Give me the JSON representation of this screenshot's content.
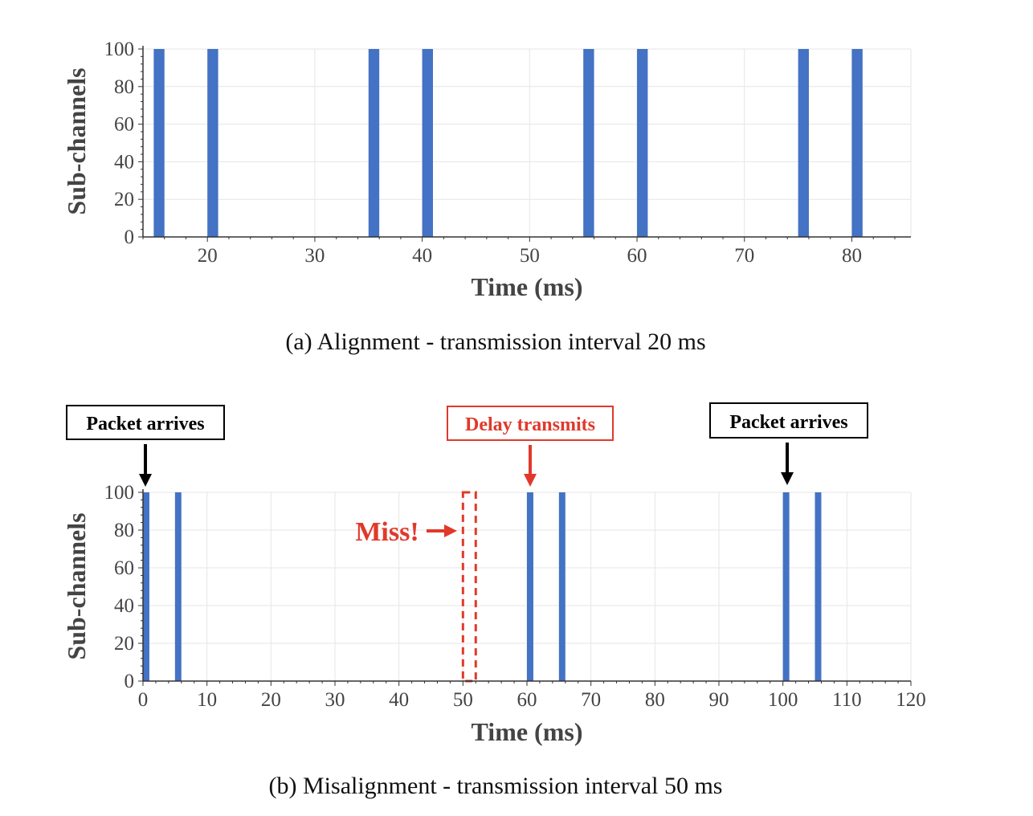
{
  "colors": {
    "bar": "#4472C4",
    "callout_red": "#E0392B",
    "callout_black": "#000000"
  },
  "chart_data": [
    {
      "type": "bar",
      "caption": "(a)  Alignment - transmission interval 20 ms",
      "xlabel": "Time (ms)",
      "ylabel": "Sub-channels",
      "xlim": [
        14,
        85.5
      ],
      "ylim": [
        0,
        100
      ],
      "xticks": [
        20,
        30,
        40,
        50,
        60,
        70,
        80
      ],
      "yticks": [
        0,
        20,
        40,
        60,
        80,
        100
      ],
      "bar_width_ms": 1,
      "bars": [
        {
          "x": 15.5,
          "value": 100
        },
        {
          "x": 20.5,
          "value": 100
        },
        {
          "x": 35.5,
          "value": 100
        },
        {
          "x": 40.5,
          "value": 100
        },
        {
          "x": 55.5,
          "value": 100
        },
        {
          "x": 60.5,
          "value": 100
        },
        {
          "x": 75.5,
          "value": 100
        },
        {
          "x": 80.5,
          "value": 100
        }
      ],
      "grid": true
    },
    {
      "type": "bar",
      "caption": "(b)  Misalignment - transmission interval 50 ms",
      "xlabel": "Time (ms)",
      "ylabel": "Sub-channels",
      "xlim": [
        0,
        120
      ],
      "ylim": [
        0,
        100
      ],
      "xticks": [
        0,
        10,
        20,
        30,
        40,
        50,
        60,
        70,
        80,
        90,
        100,
        110,
        120
      ],
      "yticks": [
        0,
        20,
        40,
        60,
        80,
        100
      ],
      "bar_width_ms": 1,
      "bars": [
        {
          "x": 0.5,
          "value": 100
        },
        {
          "x": 5.5,
          "value": 100
        },
        {
          "x": 60.5,
          "value": 100
        },
        {
          "x": 65.5,
          "value": 100
        },
        {
          "x": 100.5,
          "value": 100
        },
        {
          "x": 105.5,
          "value": 100
        }
      ],
      "missed_slot": {
        "x_start": 50,
        "x_end": 52,
        "value": 100
      },
      "annotations": [
        {
          "text": "Packet arrives",
          "style": "black",
          "x": 0.5
        },
        {
          "text": "Delay transmits",
          "style": "red",
          "x": 60.5
        },
        {
          "text": "Packet arrives",
          "style": "black",
          "x": 100.5
        },
        {
          "text": "Miss!",
          "style": "red-inline",
          "x": 50
        }
      ],
      "grid": true
    }
  ]
}
